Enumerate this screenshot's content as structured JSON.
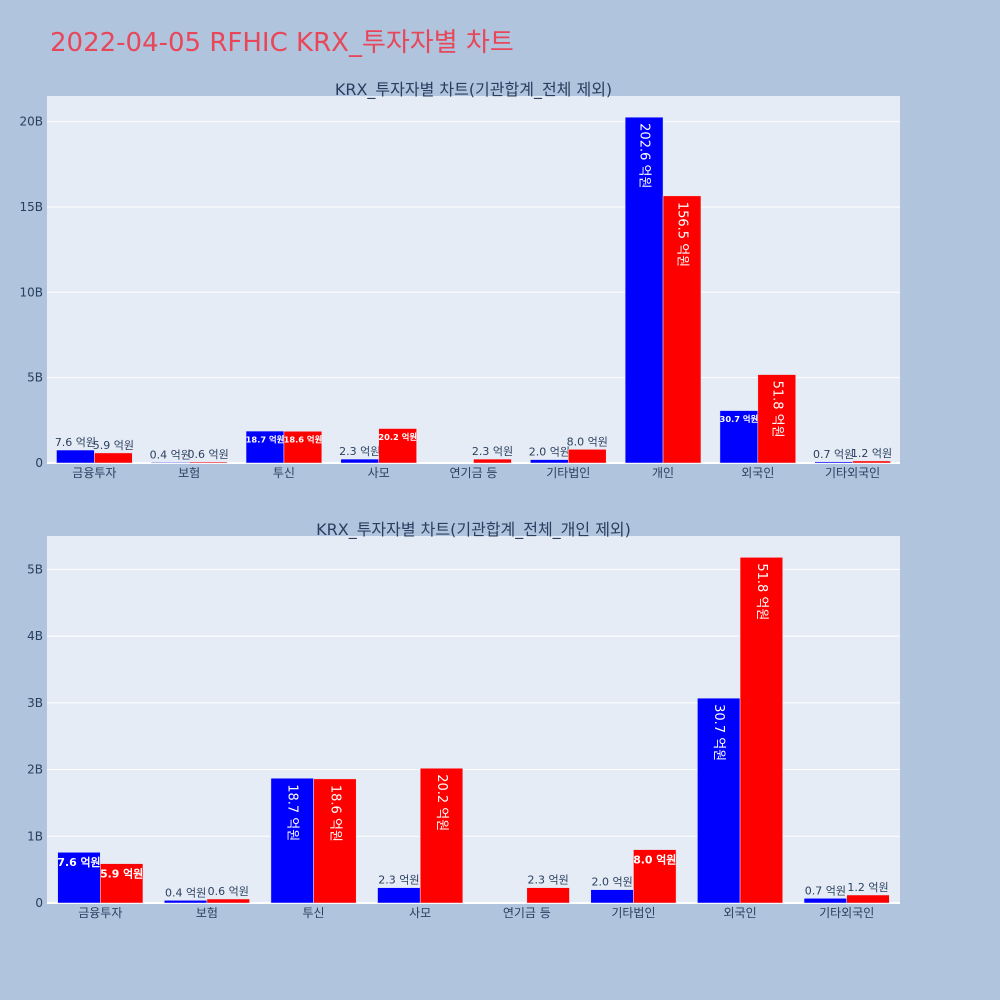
{
  "page": {
    "title": "2022-04-05 RFHIC KRX_투자자별 차트"
  },
  "colors": {
    "buy": "#0000ff",
    "sell": "#ff0000",
    "plot_bg": "#e5ecf6",
    "paper_bg": "#b0c4de",
    "title": "#e8475a"
  },
  "chart_data": [
    {
      "type": "bar",
      "title": "KRX_투자자별 차트(기관합계_전체 제외)",
      "categories": [
        "금융투자",
        "보험",
        "투신",
        "사모",
        "연기금 등",
        "기타법인",
        "개인",
        "외국인",
        "기타외국인"
      ],
      "ylim": [
        0,
        21.5
      ],
      "yticks": [
        0,
        5,
        10,
        15,
        20
      ],
      "ytick_labels": [
        "0",
        "5B",
        "10B",
        "15B",
        "20B"
      ],
      "series": [
        {
          "name": "buy",
          "color": "#0000ff",
          "values": [
            0.76,
            0.04,
            1.87,
            0.23,
            0.0,
            0.2,
            20.26,
            3.07,
            0.07
          ],
          "labels": [
            "7.6 억원",
            "0.4 억원",
            "18.7 억원",
            "2.3 억원",
            "",
            "2.0 억원",
            "202.6 억원",
            "30.7 억원",
            "0.7 억원"
          ]
        },
        {
          "name": "sell",
          "color": "#ff0000",
          "values": [
            0.59,
            0.06,
            1.86,
            2.02,
            0.23,
            0.8,
            15.65,
            5.18,
            0.12
          ],
          "labels": [
            "5.9 억원",
            "0.6 억원",
            "18.6 억원",
            "20.2 억원",
            "2.3 억원",
            "8.0 억원",
            "156.5 억원",
            "51.8 억원",
            "1.2 억원"
          ]
        }
      ]
    },
    {
      "type": "bar",
      "title": "KRX_투자자별 차트(기관합계_전체_개인 제외)",
      "categories": [
        "금융투자",
        "보험",
        "투신",
        "사모",
        "연기금 등",
        "기타법인",
        "외국인",
        "기타외국인"
      ],
      "ylim": [
        0,
        5.5
      ],
      "yticks": [
        0,
        1,
        2,
        3,
        4,
        5
      ],
      "ytick_labels": [
        "0",
        "1B",
        "2B",
        "3B",
        "4B",
        "5B"
      ],
      "series": [
        {
          "name": "buy",
          "color": "#0000ff",
          "values": [
            0.76,
            0.04,
            1.87,
            0.23,
            0.0,
            0.2,
            3.07,
            0.07
          ],
          "labels": [
            "7.6 억원",
            "0.4 억원",
            "18.7 억원",
            "2.3 억원",
            "",
            "2.0 억원",
            "30.7 억원",
            "0.7 억원"
          ]
        },
        {
          "name": "sell",
          "color": "#ff0000",
          "values": [
            0.59,
            0.06,
            1.86,
            2.02,
            0.23,
            0.8,
            5.18,
            0.12
          ],
          "labels": [
            "5.9 억원",
            "0.6 억원",
            "18.6 억원",
            "20.2 억원",
            "2.3 억원",
            "8.0 억원",
            "51.8 억원",
            "1.2 억원"
          ]
        }
      ]
    }
  ]
}
